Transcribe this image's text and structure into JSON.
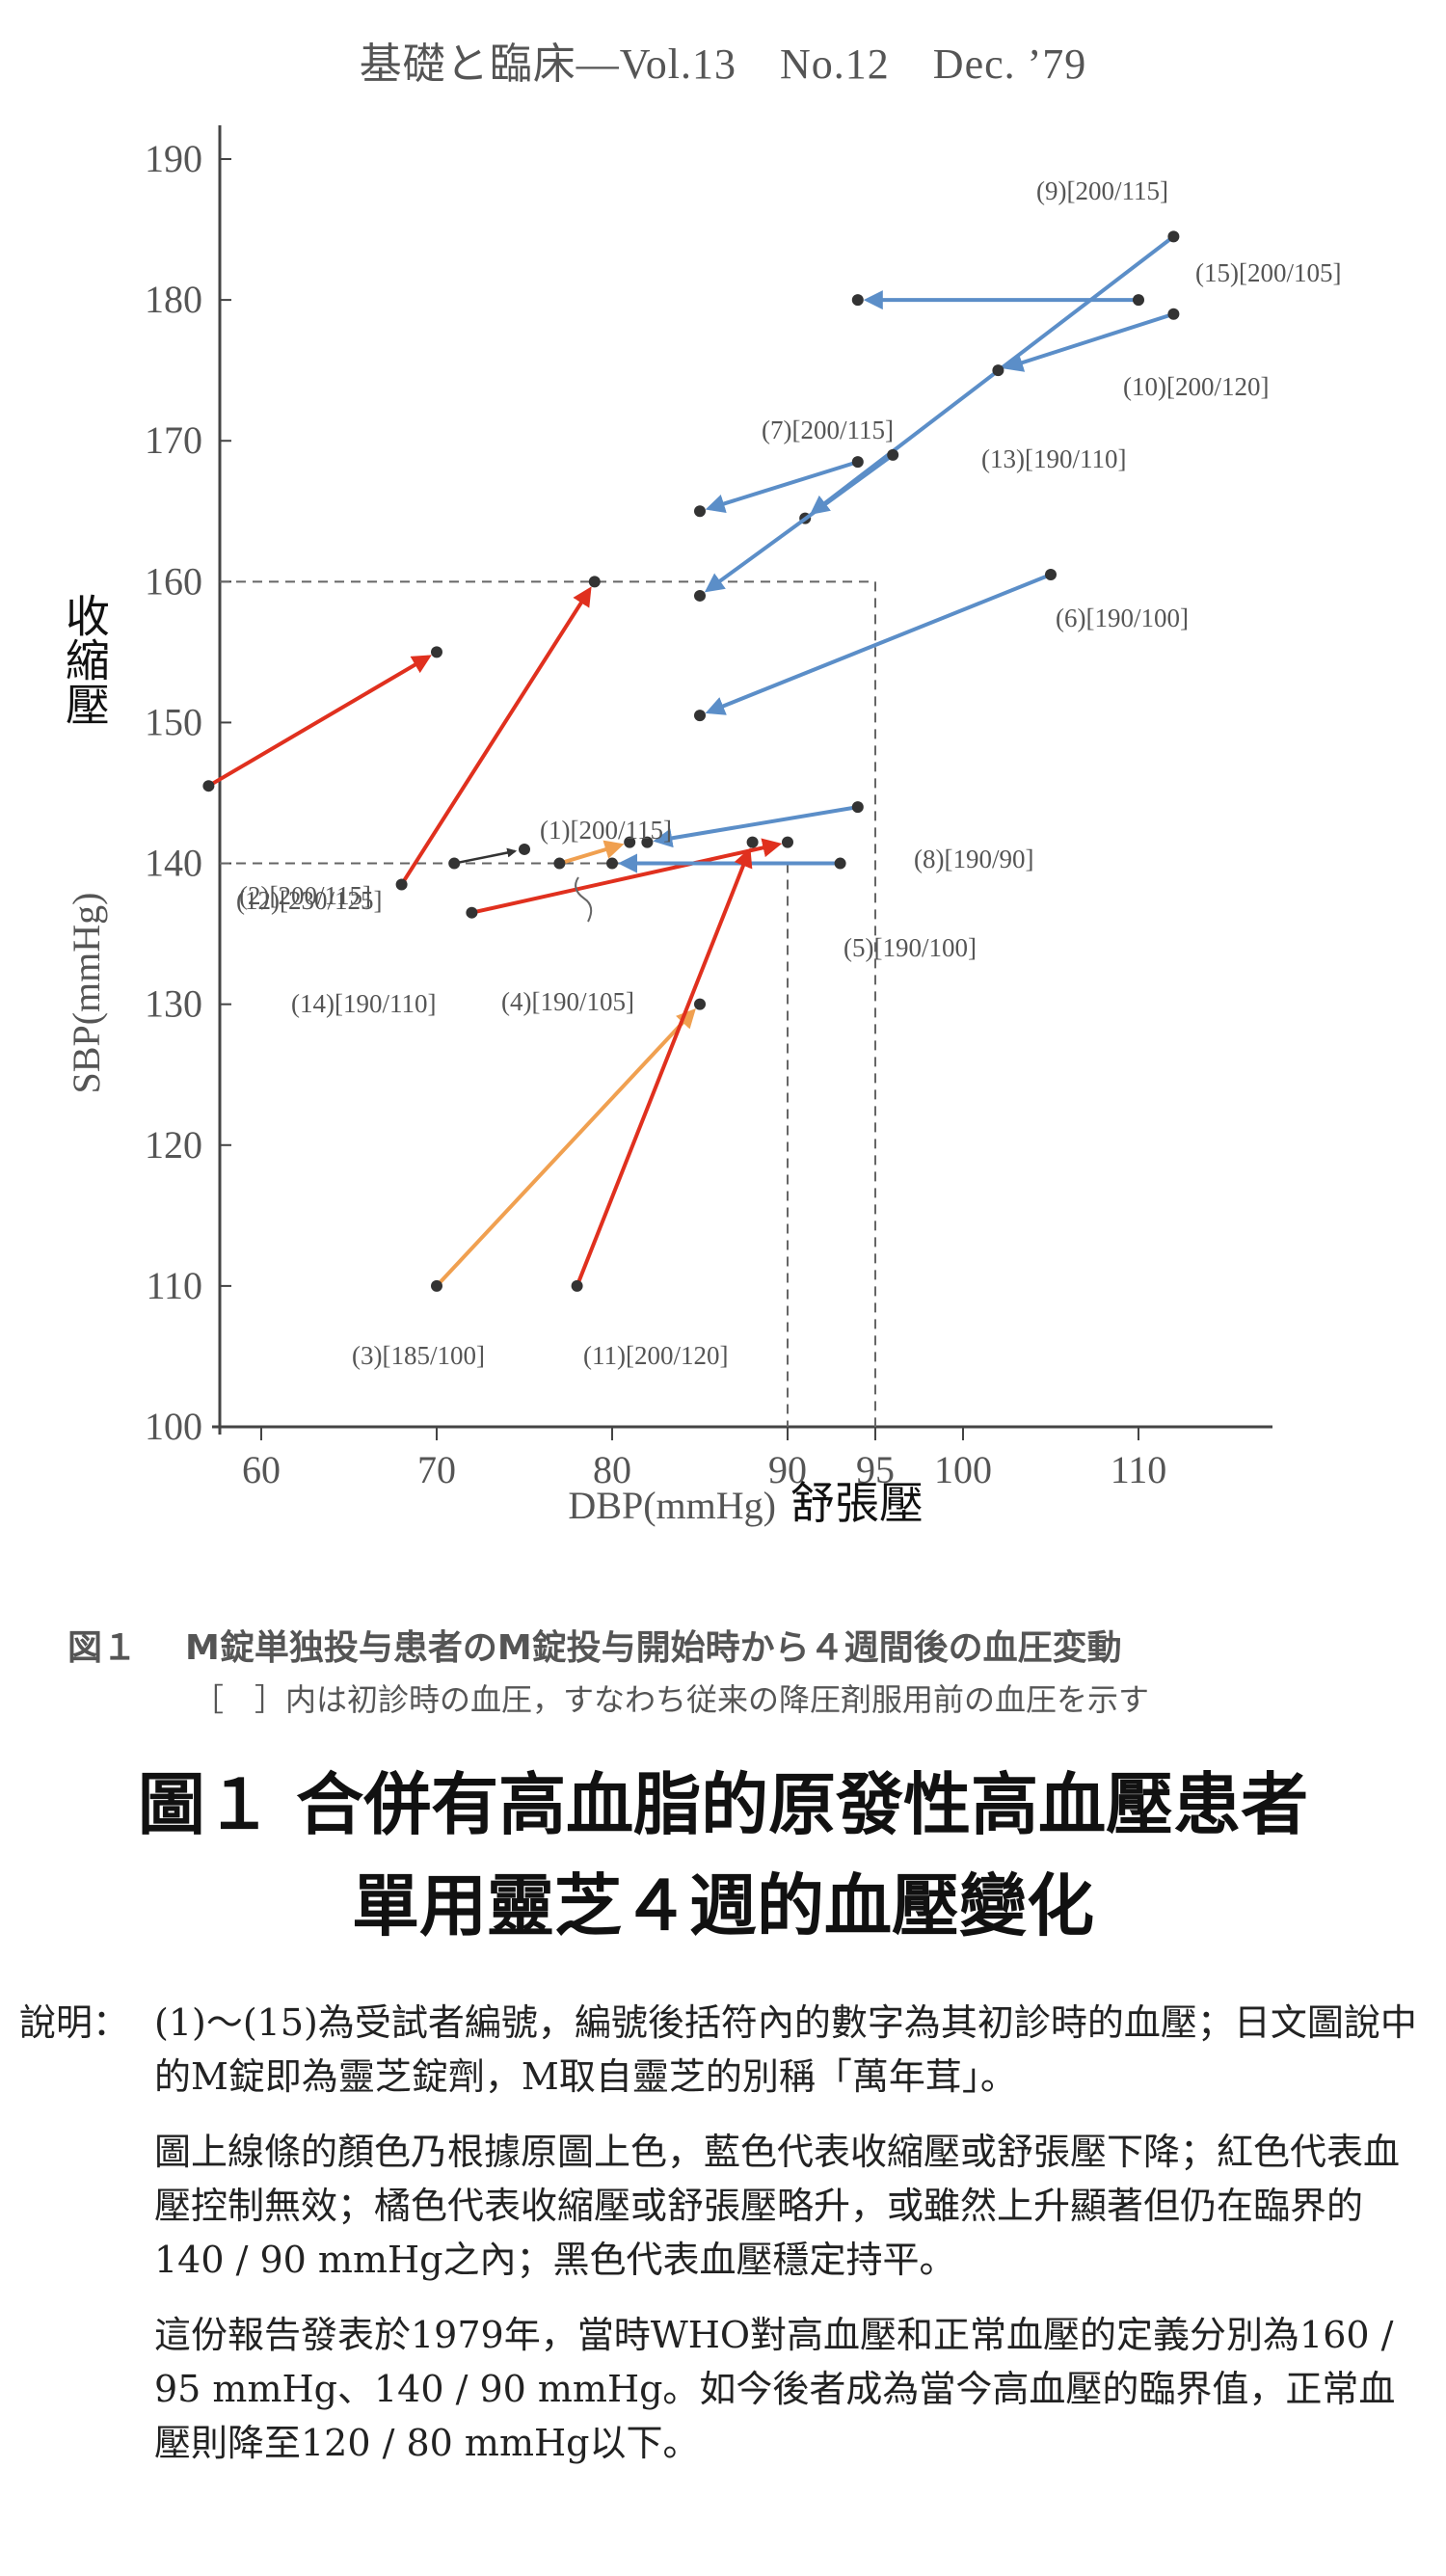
{
  "header": "基礎と臨床—Vol.13　No.12　Dec. ’79",
  "colors": {
    "blue": "#5b8ec8",
    "red": "#e0301e",
    "orange": "#f0a050",
    "black": "#333333",
    "point": "#333333"
  },
  "chart_data": {
    "type": "scatter",
    "title": "",
    "xlabel": "DBP(mmHg)",
    "xlabel_cn": "舒張壓",
    "ylabel": "SBP(mmHg)",
    "ylabel_cn": "收縮壓",
    "xlim": [
      55,
      115
    ],
    "ylim": [
      100,
      190
    ],
    "xticks": [
      60,
      70,
      80,
      90,
      95,
      100,
      110
    ],
    "yticks": [
      100,
      110,
      120,
      130,
      140,
      150,
      160,
      170,
      180,
      190
    ],
    "reference_lines": [
      {
        "type": "box",
        "x": 95,
        "y": 160
      },
      {
        "type": "box",
        "x": 90,
        "y": 140
      }
    ],
    "patients": [
      {
        "label": "(1)[200/115]",
        "from": [
          77,
          140
        ],
        "to": [
          81,
          141.5
        ],
        "color": "orange"
      },
      {
        "label": "(2)[200/115]",
        "from": [
          57,
          145.5
        ],
        "to": [
          70,
          155
        ],
        "color": "red"
      },
      {
        "label": "(3)[185/100]",
        "from": [
          70,
          110
        ],
        "to": [
          85,
          130
        ],
        "color": "orange"
      },
      {
        "label": "(4)[190/105]",
        "from": [
          72,
          136.5
        ],
        "to": [
          90,
          141.5
        ],
        "color": "red"
      },
      {
        "label": "(5)[190/100]",
        "from": [
          93,
          140
        ],
        "to": [
          80,
          140
        ],
        "color": "blue"
      },
      {
        "label": "(6)[190/100]",
        "from": [
          105,
          160.5
        ],
        "to": [
          85,
          150.5
        ],
        "color": "blue"
      },
      {
        "label": "(7)[200/115]",
        "from": [
          94,
          168.5
        ],
        "to": [
          85,
          165
        ],
        "color": "blue"
      },
      {
        "label": "(8)[190/90]",
        "from": [
          94,
          144
        ],
        "to": [
          82,
          141.5
        ],
        "color": "blue"
      },
      {
        "label": "(9)[200/115]",
        "from": [
          112,
          184.5
        ],
        "to": [
          91,
          164.5
        ],
        "color": "blue"
      },
      {
        "label": "(10)[200/120]",
        "from": [
          112,
          179
        ],
        "to": [
          102,
          175
        ],
        "color": "blue"
      },
      {
        "label": "(11)[200/120]",
        "from": [
          78,
          110
        ],
        "to": [
          88,
          141.5
        ],
        "color": "red"
      },
      {
        "label": "(12)[230/125]",
        "from": [
          68,
          138.5
        ],
        "to": [
          79,
          160
        ],
        "color": "red"
      },
      {
        "label": "(13)[190/110]",
        "from": [
          96,
          169
        ],
        "to": [
          85,
          159
        ],
        "color": "blue"
      },
      {
        "label": "(14)[190/110]",
        "from": [
          71,
          140
        ],
        "to": [
          75,
          141
        ],
        "color": "black"
      },
      {
        "label": "(15)[200/105]",
        "from": [
          110,
          180
        ],
        "to": [
          94,
          180
        ],
        "color": "blue"
      }
    ]
  },
  "figure_caption": {
    "number": "図１",
    "line1": "M錠単独投与患者のM錠投与開始時から４週間後の血圧変動",
    "line2": "［　］内は初診時の血圧，すなわち従来の降圧剤服用前の血圧を示す"
  },
  "title": {
    "line1": "圖１ 合併有高血脂的原發性高血壓患者",
    "line2": "單用靈芝４週的血壓變化"
  },
  "notes": {
    "label": "說明：",
    "paragraphs": [
      "(1)～(15)為受試者編號，編號後括符內的數字為其初診時的血壓；日文圖說中的M錠即為靈芝錠劑，M取自靈芝的別稱「萬年茸」。",
      "圖上線條的顏色乃根據原圖上色，藍色代表收縮壓或舒張壓下降；紅色代表血壓控制無效；橘色代表收縮壓或舒張壓略升，或雖然上升顯著但仍在臨界的140 / 90 mmHg之內；黑色代表血壓穩定持平。",
      "這份報告發表於1979年，當時WHO對高血壓和正常血壓的定義分別為160 / 95 mmHg、140 / 90 mmHg。如今後者成為當今高血壓的臨界值，正常血壓則降至120 / 80 mmHg以下。"
    ]
  }
}
